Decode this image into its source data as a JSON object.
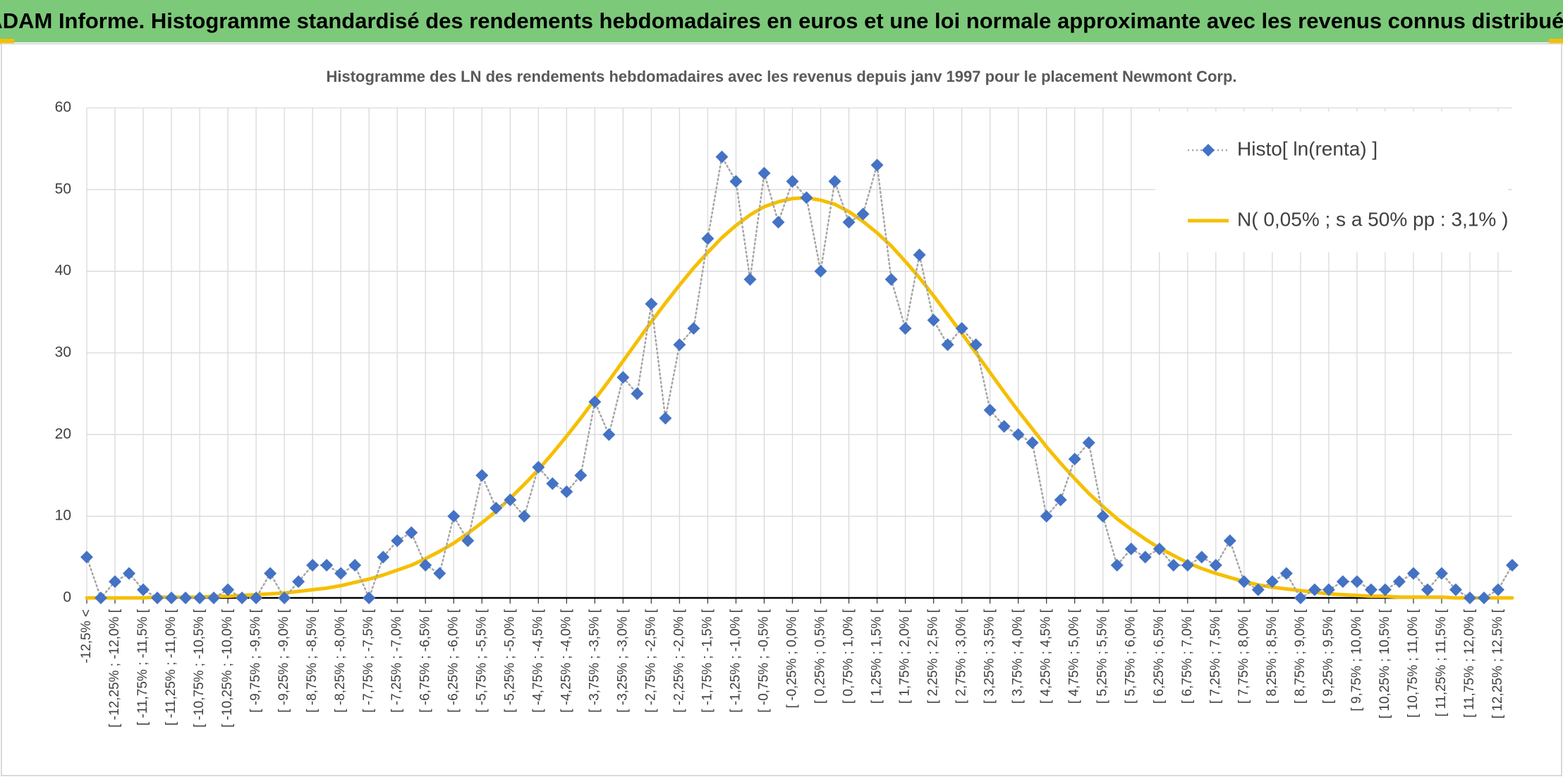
{
  "chart_data": {
    "type": "line",
    "title": "ADAM Informe. Histogramme standardisé des rendements hebdomadaires en euros et une loi normale approximante avec les revenus connus distribués",
    "subtitle": "Histogramme des LN des rendements hebdomadaires avec les revenus depuis janv 1997 pour le placement Newmont Corp.",
    "categories": [
      "-12,5% <",
      null,
      "[ -12,25% ; -12,0% [",
      null,
      "[ -11,75% ; -11,5% [",
      null,
      "[ -11,25% ; -11,0% [",
      null,
      "[ -10,75% ; -10,5% [",
      null,
      "[ -10,25% ; -10,0% [",
      null,
      "[ -9,75% ; -9,5% [",
      null,
      "[ -9,25% ; -9,0% [",
      null,
      "[ -8,75% ; -8,5% [",
      null,
      "[ -8,25% ; -8,0% [",
      null,
      "[ -7,75% ; -7,5% [",
      null,
      "[ -7,25% ; -7,0% [",
      null,
      "[ -6,75% ; -6,5% [",
      null,
      "[ -6,25% ; -6,0% [",
      null,
      "[ -5,75% ; -5,5% [",
      null,
      "[ -5,25% ; -5,0% [",
      null,
      "[ -4,75% ; -4,5% [",
      null,
      "[ -4,25% ; -4,0% [",
      null,
      "[ -3,75% ; -3,5% [",
      null,
      "[ -3,25% ; -3,0% [",
      null,
      "[ -2,75% ; -2,5% [",
      null,
      "[ -2,25% ; -2,0% [",
      null,
      "[ -1,75% ; -1,5% [",
      null,
      "[ -1,25% ; -1,0% [",
      null,
      "[ -0,75% ; -0,5% [",
      null,
      "[ -0,25% ; 0,0% [",
      null,
      "[ 0,25% ; 0,5% [",
      null,
      "[ 0,75% ; 1,0% [",
      null,
      "[ 1,25% ; 1,5% [",
      null,
      "[ 1,75% ; 2,0% [",
      null,
      "[ 2,25% ; 2,5% [",
      null,
      "[ 2,75% ; 3,0% [",
      null,
      "[ 3,25% ; 3,5% [",
      null,
      "[ 3,75% ; 4,0% [",
      null,
      "[ 4,25% ; 4,5% [",
      null,
      "[ 4,75% ; 5,0% [",
      null,
      "[ 5,25% ; 5,5% [",
      null,
      "[ 5,75% ; 6,0% [",
      null,
      "[ 6,25% ; 6,5% [",
      null,
      "[ 6,75% ; 7,0% [",
      null,
      "[ 7,25% ; 7,5% [",
      null,
      "[ 7,75% ; 8,0% [",
      null,
      "[ 8,25% ; 8,5% [",
      null,
      "[ 8,75% ; 9,0% [",
      null,
      "[ 9,25% ; 9,5% [",
      null,
      "[ 9,75% ; 10,0% [",
      null,
      "[ 10,25% ; 10,5% [",
      null,
      "[ 10,75% ; 11,0% [",
      null,
      "[ 11,25% ; 11,5% [",
      null,
      "[ 11,75% ; 12,0% [",
      null,
      "[ 12,25% ; 12,5% [",
      null
    ],
    "series": [
      {
        "name": "Histo[ ln(renta) ]",
        "color": "#4472c4",
        "line_color": "#a6a6a6",
        "line_style": "dotted",
        "marker": "diamond",
        "values": [
          5,
          0,
          2,
          3,
          1,
          0,
          0,
          0,
          0,
          0,
          1,
          0,
          0,
          3,
          0,
          2,
          4,
          4,
          3,
          4,
          0,
          5,
          7,
          8,
          4,
          3,
          10,
          7,
          15,
          11,
          12,
          10,
          16,
          14,
          13,
          15,
          24,
          20,
          27,
          25,
          36,
          22,
          31,
          33,
          44,
          54,
          51,
          39,
          52,
          46,
          51,
          49,
          40,
          51,
          46,
          47,
          53,
          39,
          33,
          42,
          34,
          31,
          33,
          31,
          23,
          21,
          20,
          19,
          10,
          12,
          17,
          19,
          10,
          4,
          6,
          5,
          6,
          4,
          4,
          5,
          4,
          7,
          2,
          1,
          2,
          3,
          0,
          1,
          1,
          2,
          2,
          1,
          1,
          2,
          3,
          1,
          3,
          1,
          0,
          0,
          1,
          4
        ]
      },
      {
        "name": "N( 0,05% ; s a 50% pp : 3,1% )",
        "color": "#f5bf00",
        "line_style": "solid",
        "values": [
          0.0,
          0.0,
          0.0,
          0.0,
          0.0,
          0.1,
          0.1,
          0.1,
          0.1,
          0.2,
          0.2,
          0.3,
          0.4,
          0.5,
          0.6,
          0.8,
          1.0,
          1.2,
          1.5,
          1.9,
          2.3,
          2.8,
          3.4,
          4.0,
          4.8,
          5.7,
          6.7,
          7.9,
          9.2,
          10.6,
          12.2,
          13.9,
          15.7,
          17.7,
          19.8,
          22.0,
          24.3,
          26.6,
          29.0,
          31.4,
          33.8,
          36.1,
          38.3,
          40.4,
          42.3,
          44.1,
          45.6,
          46.9,
          47.9,
          48.5,
          48.9,
          49.0,
          48.7,
          48.2,
          47.3,
          46.1,
          44.7,
          43.1,
          41.2,
          39.2,
          37.0,
          34.7,
          32.4,
          30.0,
          27.6,
          25.2,
          22.9,
          20.7,
          18.5,
          16.5,
          14.6,
          12.8,
          11.2,
          9.7,
          8.4,
          7.2,
          6.1,
          5.2,
          4.3,
          3.6,
          3.0,
          2.5,
          2.0,
          1.6,
          1.3,
          1.1,
          0.9,
          0.7,
          0.5,
          0.4,
          0.3,
          0.2,
          0.2,
          0.1,
          0.1,
          0.1,
          0.1,
          0.0,
          0.0,
          0.0,
          0.0,
          0.0
        ]
      }
    ],
    "ylim": [
      0,
      60
    ],
    "yticks": [
      0,
      10,
      20,
      30,
      40,
      50,
      60
    ],
    "grid": true,
    "legend": "top-right"
  }
}
